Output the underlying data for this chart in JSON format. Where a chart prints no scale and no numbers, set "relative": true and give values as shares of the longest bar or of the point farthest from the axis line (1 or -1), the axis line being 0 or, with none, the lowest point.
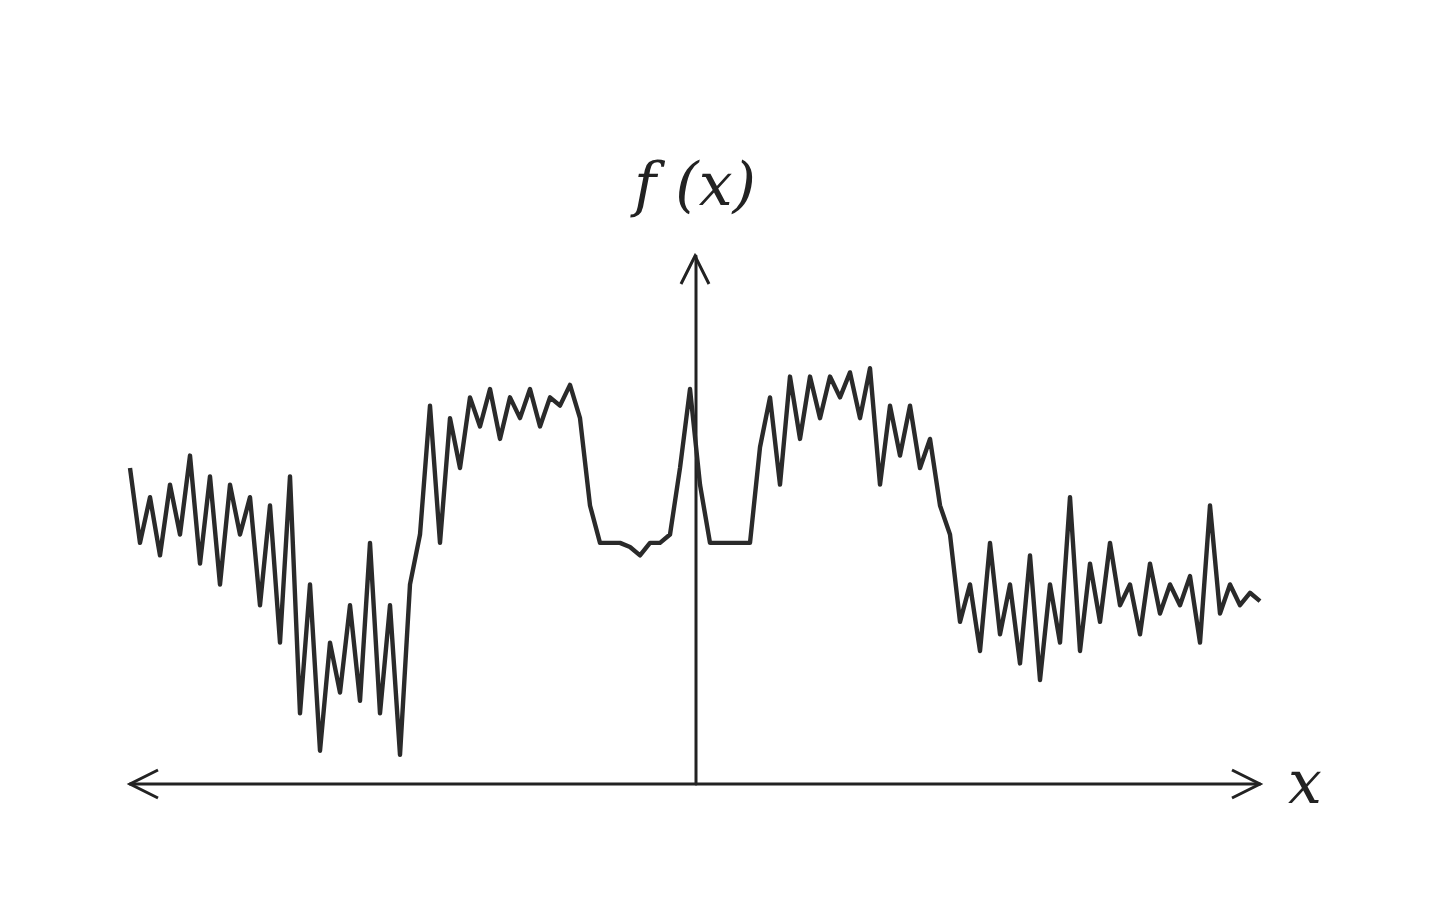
{
  "chart_data": {
    "type": "line",
    "relative": true,
    "xlabel": "x",
    "ylabel": "f (x)",
    "color": "#2a2a2a",
    "grid": false,
    "marker": "none",
    "line_style": "solid",
    "categories": [
      null,
      null,
      null,
      null,
      null,
      null,
      null,
      null,
      null,
      null,
      null,
      null,
      null,
      null,
      null,
      null,
      null,
      null,
      null,
      null,
      null,
      null,
      null,
      null,
      null,
      null,
      null,
      null,
      null,
      null,
      null,
      null,
      null,
      null,
      null,
      null,
      null,
      null,
      null,
      null,
      null,
      null,
      null,
      null,
      null,
      null,
      null,
      null,
      null,
      null,
      null,
      null,
      null,
      null,
      null,
      null,
      null,
      null,
      null,
      null,
      null,
      null,
      null,
      null,
      null,
      null,
      null,
      null,
      null,
      null,
      null,
      null,
      null,
      null,
      null,
      null,
      null,
      null,
      null,
      null,
      null,
      null,
      null,
      null,
      null,
      null,
      null,
      null,
      null,
      null,
      null,
      null,
      null,
      null,
      null,
      null,
      null,
      null,
      null,
      null,
      null,
      null,
      null,
      null,
      null,
      null,
      null,
      null,
      null,
      null,
      null,
      null,
      null,
      null
    ],
    "values": [
      0.76,
      0.58,
      0.69,
      0.55,
      0.72,
      0.6,
      0.79,
      0.53,
      0.74,
      0.48,
      0.72,
      0.6,
      0.69,
      0.43,
      0.67,
      0.34,
      0.74,
      0.17,
      0.48,
      0.08,
      0.34,
      0.22,
      0.43,
      0.2,
      0.58,
      0.17,
      0.43,
      0.07,
      0.48,
      0.6,
      0.91,
      0.58,
      0.88,
      0.76,
      0.93,
      0.86,
      0.95,
      0.83,
      0.93,
      0.88,
      0.95,
      0.86,
      0.93,
      0.91,
      0.96,
      0.88,
      0.67,
      0.58,
      0.58,
      0.58,
      0.57,
      0.55,
      0.58,
      0.58,
      0.6,
      0.76,
      0.95,
      0.72,
      0.58,
      0.58,
      0.58,
      0.58,
      0.58,
      0.81,
      0.93,
      0.72,
      0.98,
      0.83,
      0.98,
      0.88,
      0.98,
      0.93,
      0.99,
      0.88,
      1,
      0.72,
      0.91,
      0.79,
      0.91,
      0.76,
      0.83,
      0.67,
      0.6,
      0.39,
      0.48,
      0.32,
      0.58,
      0.36,
      0.48,
      0.29,
      0.55,
      0.25,
      0.48,
      0.34,
      0.69,
      0.32,
      0.53,
      0.39,
      0.58,
      0.43,
      0.48,
      0.36,
      0.53,
      0.41,
      0.48,
      0.43,
      0.5,
      0.34,
      0.67,
      0.41,
      0.48,
      0.43,
      0.46,
      0.44
    ]
  }
}
